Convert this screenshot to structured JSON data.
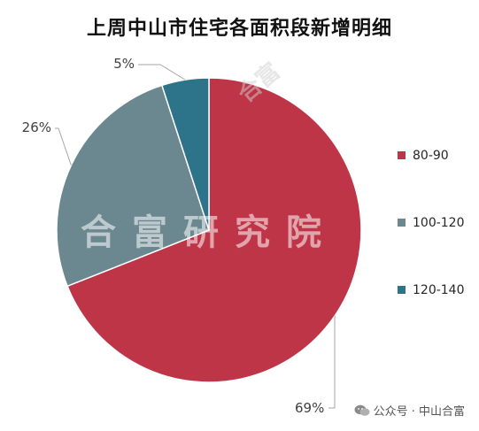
{
  "chart_data": {
    "type": "pie",
    "title": "上周中山市住宅各面积段新增明细",
    "categories": [
      "80-90",
      "100-120",
      "120-140"
    ],
    "values": [
      69,
      26,
      5
    ],
    "value_labels": [
      "69%",
      "26%",
      "5%"
    ],
    "colors": [
      "#BE3548",
      "#6B8790",
      "#2D738A"
    ],
    "legend": {
      "position": "right",
      "entries": [
        "80-90",
        "100-120",
        "120-140"
      ]
    }
  },
  "watermark": {
    "text": "合富研究院",
    "footer": "公众号 · 中山合富"
  }
}
